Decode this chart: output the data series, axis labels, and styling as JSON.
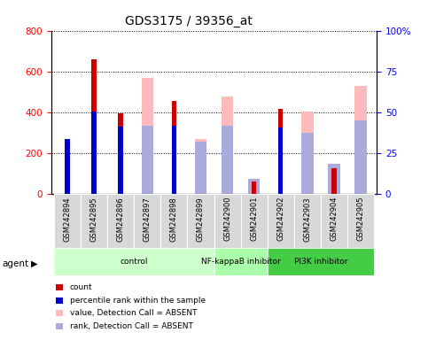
{
  "title": "GDS3175 / 39356_at",
  "samples": [
    "GSM242894",
    "GSM242895",
    "GSM242896",
    "GSM242897",
    "GSM242898",
    "GSM242899",
    "GSM242900",
    "GSM242901",
    "GSM242902",
    "GSM242903",
    "GSM242904",
    "GSM242905"
  ],
  "count_values": [
    0,
    660,
    395,
    0,
    455,
    0,
    0,
    60,
    415,
    0,
    125,
    0
  ],
  "rank_values": [
    270,
    405,
    330,
    0,
    335,
    0,
    0,
    0,
    325,
    0,
    0,
    0
  ],
  "absent_value": [
    0,
    0,
    0,
    570,
    0,
    270,
    475,
    0,
    0,
    405,
    130,
    530
  ],
  "absent_rank": [
    0,
    0,
    0,
    335,
    0,
    255,
    335,
    75,
    0,
    300,
    145,
    360
  ],
  "groups": [
    {
      "label": "control",
      "start": 0,
      "end": 5,
      "color": "#ccffcc"
    },
    {
      "label": "NF-kappaB inhibitor",
      "start": 6,
      "end": 7,
      "color": "#aaffaa"
    },
    {
      "label": "PI3K inhibitor",
      "start": 8,
      "end": 11,
      "color": "#44cc44"
    }
  ],
  "ylim_left": [
    0,
    800
  ],
  "ylim_right": [
    0,
    100
  ],
  "yticks_left": [
    0,
    200,
    400,
    600,
    800
  ],
  "yticks_right": [
    0,
    25,
    50,
    75,
    100
  ],
  "color_count": "#cc0000",
  "color_rank": "#0000cc",
  "color_absent_value": "#ffbbbb",
  "color_absent_rank": "#aaaadd",
  "legend_items": [
    {
      "label": "count",
      "color": "#cc0000"
    },
    {
      "label": "percentile rank within the sample",
      "color": "#0000cc"
    },
    {
      "label": "value, Detection Call = ABSENT",
      "color": "#ffbbbb"
    },
    {
      "label": "rank, Detection Call = ABSENT",
      "color": "#aaaadd"
    }
  ]
}
